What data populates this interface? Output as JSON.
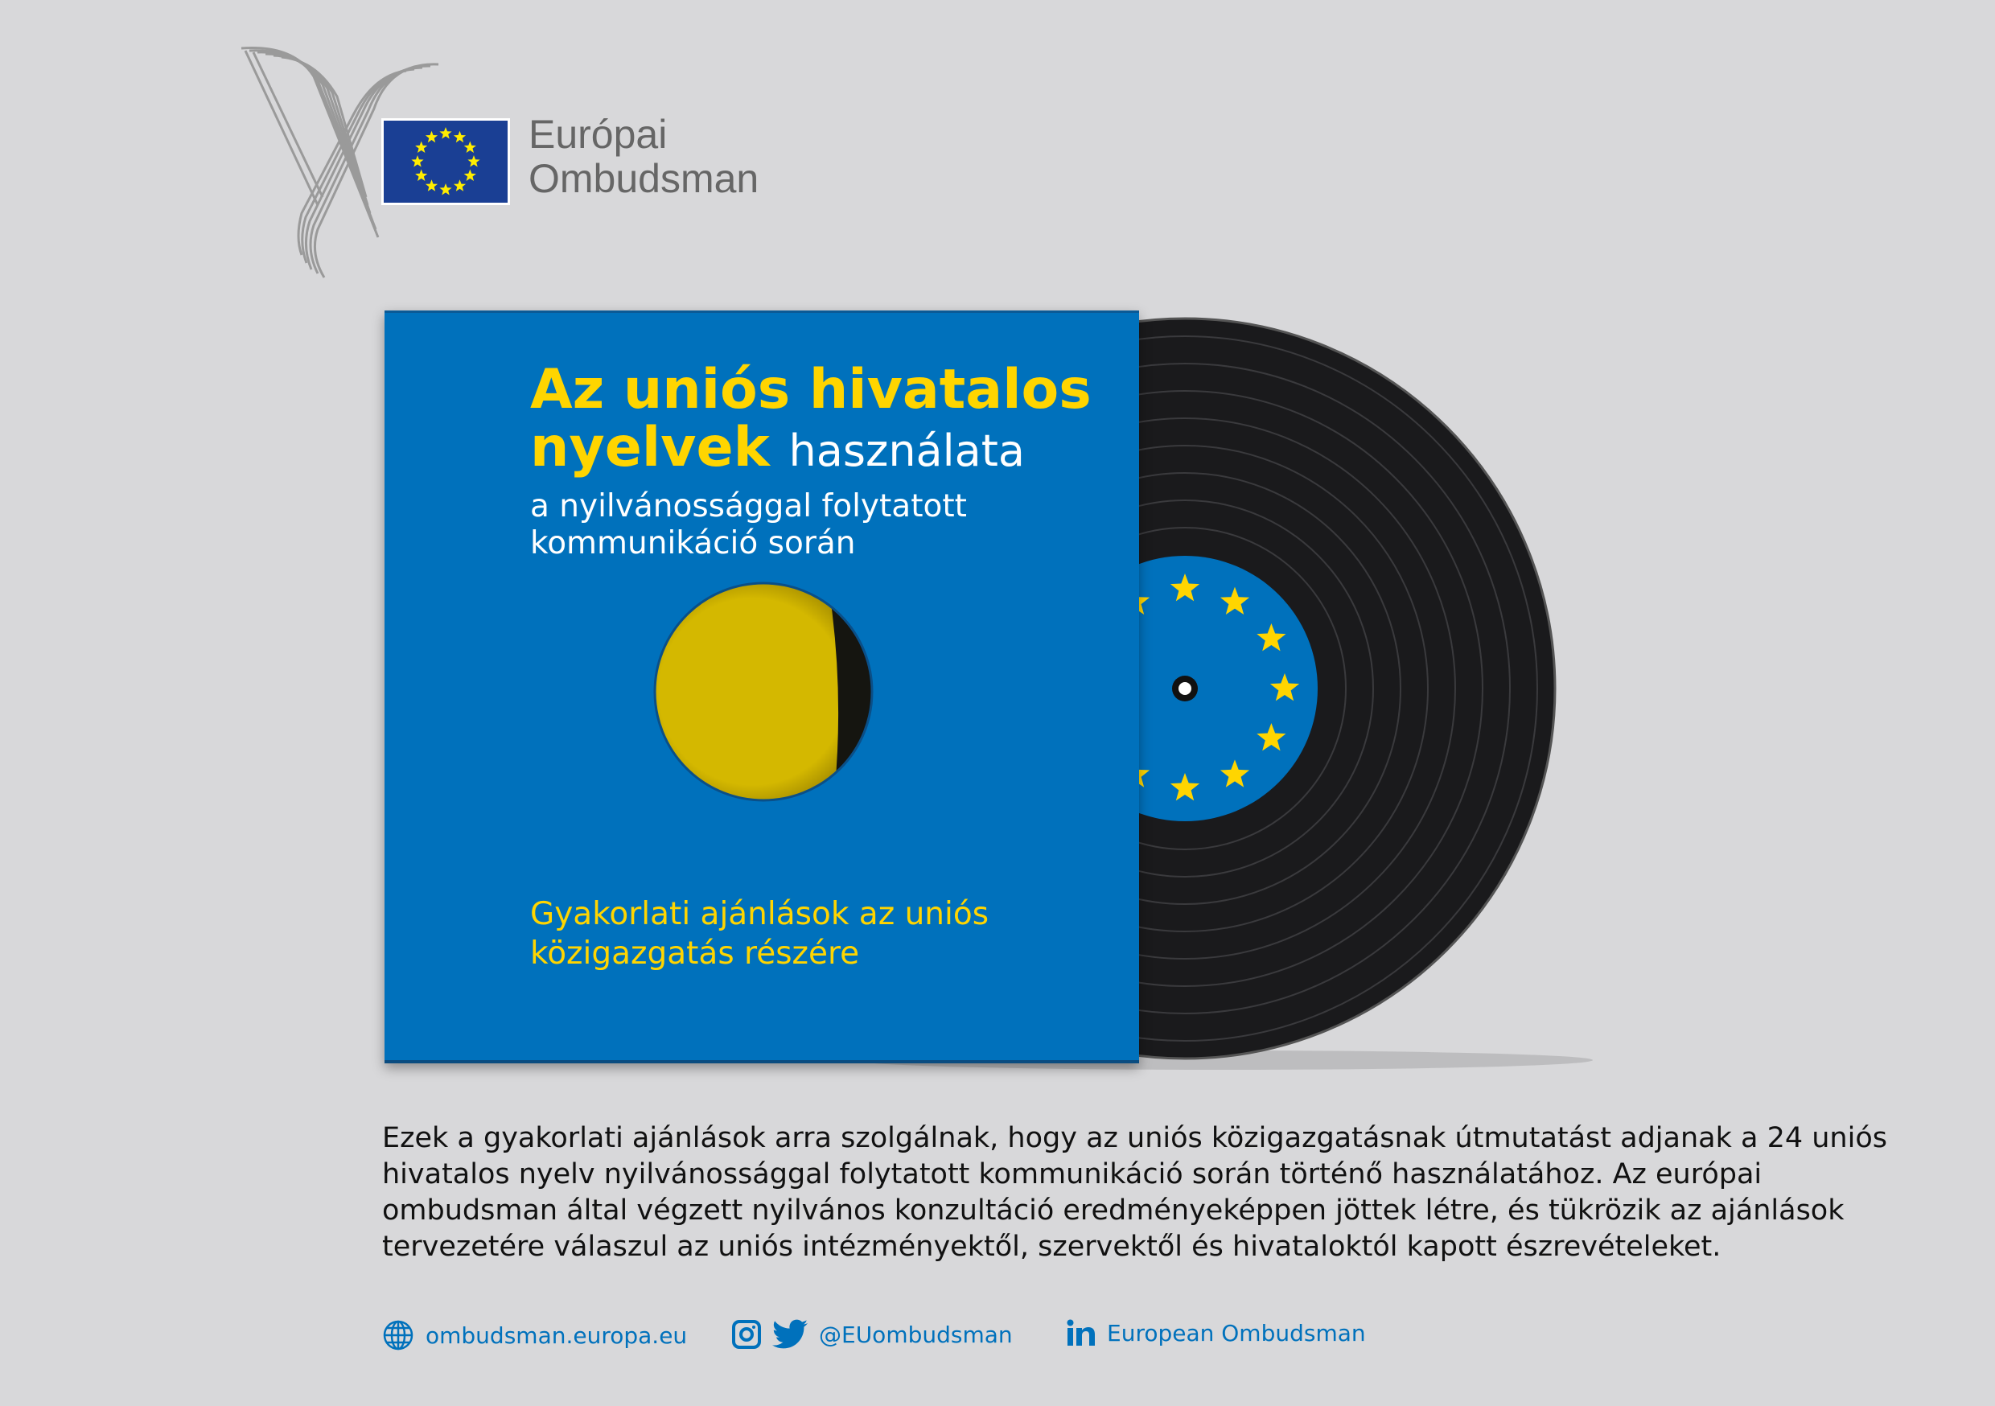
{
  "logo": {
    "line1": "Európai",
    "line2": "Ombudsman"
  },
  "cover": {
    "title_yellow_1": "Az uniós hivatalos",
    "title_yellow_2": "nyelvek",
    "title_white": "használata",
    "subtitle_1": "a nyilvánossággal folytatott",
    "subtitle_2": "kommunikáció során",
    "footer_1": "Gyakorlati ajánlások az uniós",
    "footer_2": "közigazgatás részére"
  },
  "description": "Ezek a gyakorlati ajánlások arra szolgálnak, hogy az uniós közigazgatásnak útmutatást adjanak a 24 uniós hivatalos nyelv nyilvánossággal folytatott kommunikáció során történő használatához. Az európai ombudsman által végzett nyilvános konzultáció eredményeképpen jöttek létre, és tükrözik az ajánlások tervezetére válaszul az uniós intézményektől, szervektől és hivataloktól kapott észrevételeket.",
  "footer": {
    "website": "ombudsman.europa.eu",
    "social_handle": "@EUombudsman",
    "linkedin": "European Ombudsman"
  },
  "colors": {
    "eu_blue": "#0071bc",
    "flag_blue": "#1a3f94",
    "star_yellow": "#ffd500",
    "link_blue": "#0071bc"
  }
}
